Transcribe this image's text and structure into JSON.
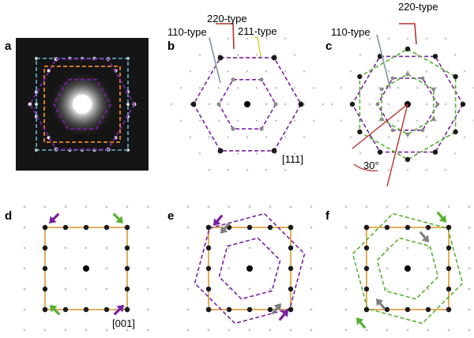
{
  "panels": {
    "a": "a",
    "b": "b",
    "c": "c",
    "d": "d",
    "e": "e",
    "f": "f"
  },
  "annotations": {
    "b_220": "220-type",
    "b_110": "110-type",
    "b_211": "211-type",
    "b_zone": "[111]",
    "c_110": "110-type",
    "c_220": "220-type",
    "c_angle": "30°",
    "d_zone": "[001]"
  },
  "colors": {
    "purple": "#7a1fa2",
    "green": "#55b030",
    "orange": "#e8892a",
    "cyan": "#5fb7d0",
    "gold": "#d89a30",
    "red": "#b8342a",
    "steel": "#7f9aa8",
    "yellow": "#e0d23a",
    "gray_arrow": "#7f7f7f",
    "spot": "#1a1a1a"
  }
}
